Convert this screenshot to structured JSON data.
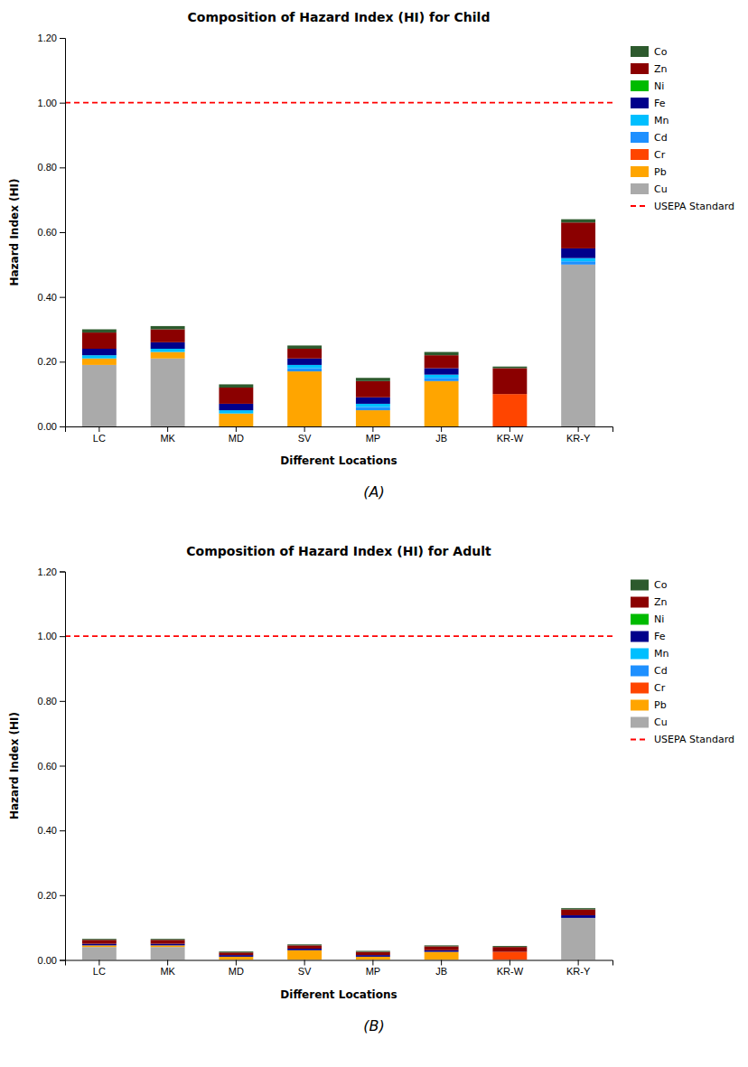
{
  "chart_data": [
    {
      "type": "bar",
      "stacked": true,
      "title": "Composition of Hazard Index (HI) for Child",
      "subtitle": "(A)",
      "x_label": "Different Locations",
      "y_label": "Hazard Index (HI)",
      "categories": [
        "LC",
        "MK",
        "MD",
        "SV",
        "MP",
        "JB",
        "KR-W",
        "KR-Y"
      ],
      "series": [
        {
          "name": "Cu",
          "color": "#aaaaaa",
          "values": [
            0.19,
            0.21,
            0.0,
            0.0,
            0.0,
            0.0,
            0.0,
            0.5
          ]
        },
        {
          "name": "Pb",
          "color": "#FFA500",
          "values": [
            0.02,
            0.02,
            0.04,
            0.17,
            0.05,
            0.14,
            0.0,
            0.0
          ]
        },
        {
          "name": "Cr",
          "color": "#FF4500",
          "values": [
            0.0,
            0.0,
            0.0,
            0.0,
            0.0,
            0.0,
            0.1,
            0.0
          ]
        },
        {
          "name": "Cd",
          "color": "#1e90ff",
          "values": [
            0.0,
            0.0,
            0.0,
            0.01,
            0.01,
            0.01,
            0.0,
            0.01
          ]
        },
        {
          "name": "Mn",
          "color": "#00bfff",
          "values": [
            0.01,
            0.01,
            0.01,
            0.01,
            0.01,
            0.01,
            0.0,
            0.01
          ]
        },
        {
          "name": "Fe",
          "color": "#00008B",
          "values": [
            0.02,
            0.02,
            0.02,
            0.02,
            0.02,
            0.02,
            0.0,
            0.03
          ]
        },
        {
          "name": "Ni",
          "color": "#00bb00",
          "values": [
            0.0,
            0.0,
            0.0,
            0.0,
            0.0,
            0.0,
            0.0,
            0.0
          ]
        },
        {
          "name": "Zn",
          "color": "#8B0000",
          "values": [
            0.05,
            0.04,
            0.05,
            0.03,
            0.05,
            0.04,
            0.08,
            0.08
          ]
        },
        {
          "name": "Co",
          "color": "#2d5a2d",
          "values": [
            0.01,
            0.01,
            0.01,
            0.01,
            0.01,
            0.01,
            0.005,
            0.01
          ]
        }
      ],
      "annotations": [
        {
          "text": "USEPA Standard",
          "y": 1.0,
          "color": "red",
          "line_style": "dashed"
        }
      ],
      "ylim": [
        0,
        1.2
      ],
      "yticks": [
        {
          "value": 0.0,
          "label": "0.00"
        },
        {
          "value": 0.2,
          "label": "0.20"
        },
        {
          "value": 0.4,
          "label": "0.40"
        },
        {
          "value": 0.6,
          "label": "0.60"
        },
        {
          "value": 0.8,
          "label": "0.80"
        },
        {
          "value": 1.0,
          "label": "1.00"
        },
        {
          "value": 1.2,
          "label": "1.20"
        }
      ],
      "grid": false,
      "legend": "upper right"
    },
    {
      "type": "bar",
      "stacked": true,
      "title": "Composition of Hazard Index (HI) for Adult",
      "subtitle": "(B)",
      "x_label": "Different Locations",
      "y_label": "Hazard Index (HI)",
      "categories": [
        "LC",
        "MK",
        "MD",
        "SV",
        "MP",
        "JB",
        "KR-W",
        "KR-Y"
      ],
      "series": [
        {
          "name": "Cu",
          "color": "#aaaaaa",
          "values": [
            0.04,
            0.04,
            0.0,
            0.0,
            0.0,
            0.0,
            0.0,
            0.13
          ]
        },
        {
          "name": "Pb",
          "color": "#FFA500",
          "values": [
            0.005,
            0.005,
            0.01,
            0.03,
            0.01,
            0.025,
            0.0,
            0.0
          ]
        },
        {
          "name": "Cr",
          "color": "#FF4500",
          "values": [
            0.0,
            0.0,
            0.0,
            0.0,
            0.0,
            0.0,
            0.025,
            0.0
          ]
        },
        {
          "name": "Cd",
          "color": "#1e90ff",
          "values": [
            0.0,
            0.0,
            0.0,
            0.0,
            0.0,
            0.0,
            0.0,
            0.0
          ]
        },
        {
          "name": "Mn",
          "color": "#00bfff",
          "values": [
            0.0,
            0.0,
            0.0,
            0.0,
            0.0,
            0.0,
            0.0,
            0.0
          ]
        },
        {
          "name": "Fe",
          "color": "#00008B",
          "values": [
            0.005,
            0.005,
            0.005,
            0.005,
            0.005,
            0.005,
            0.0,
            0.008
          ]
        },
        {
          "name": "Ni",
          "color": "#00bb00",
          "values": [
            0.0,
            0.0,
            0.0,
            0.0,
            0.0,
            0.0,
            0.0,
            0.0
          ]
        },
        {
          "name": "Zn",
          "color": "#8B0000",
          "values": [
            0.012,
            0.012,
            0.008,
            0.01,
            0.01,
            0.012,
            0.015,
            0.018
          ]
        },
        {
          "name": "Co",
          "color": "#2d5a2d",
          "values": [
            0.003,
            0.003,
            0.003,
            0.003,
            0.003,
            0.003,
            0.003,
            0.004
          ]
        }
      ],
      "annotations": [
        {
          "text": "USEPA Standard",
          "y": 1.0,
          "color": "red",
          "line_style": "dashed"
        }
      ],
      "ylim": [
        0,
        1.2
      ],
      "yticks": [
        {
          "value": 0.0,
          "label": "0.00"
        },
        {
          "value": 0.2,
          "label": "0.20"
        },
        {
          "value": 0.4,
          "label": "0.40"
        },
        {
          "value": 0.6,
          "label": "0.60"
        },
        {
          "value": 0.8,
          "label": "0.80"
        },
        {
          "value": 1.0,
          "label": "1.00"
        },
        {
          "value": 1.2,
          "label": "1.20"
        }
      ],
      "grid": false,
      "legend": "upper right"
    }
  ]
}
